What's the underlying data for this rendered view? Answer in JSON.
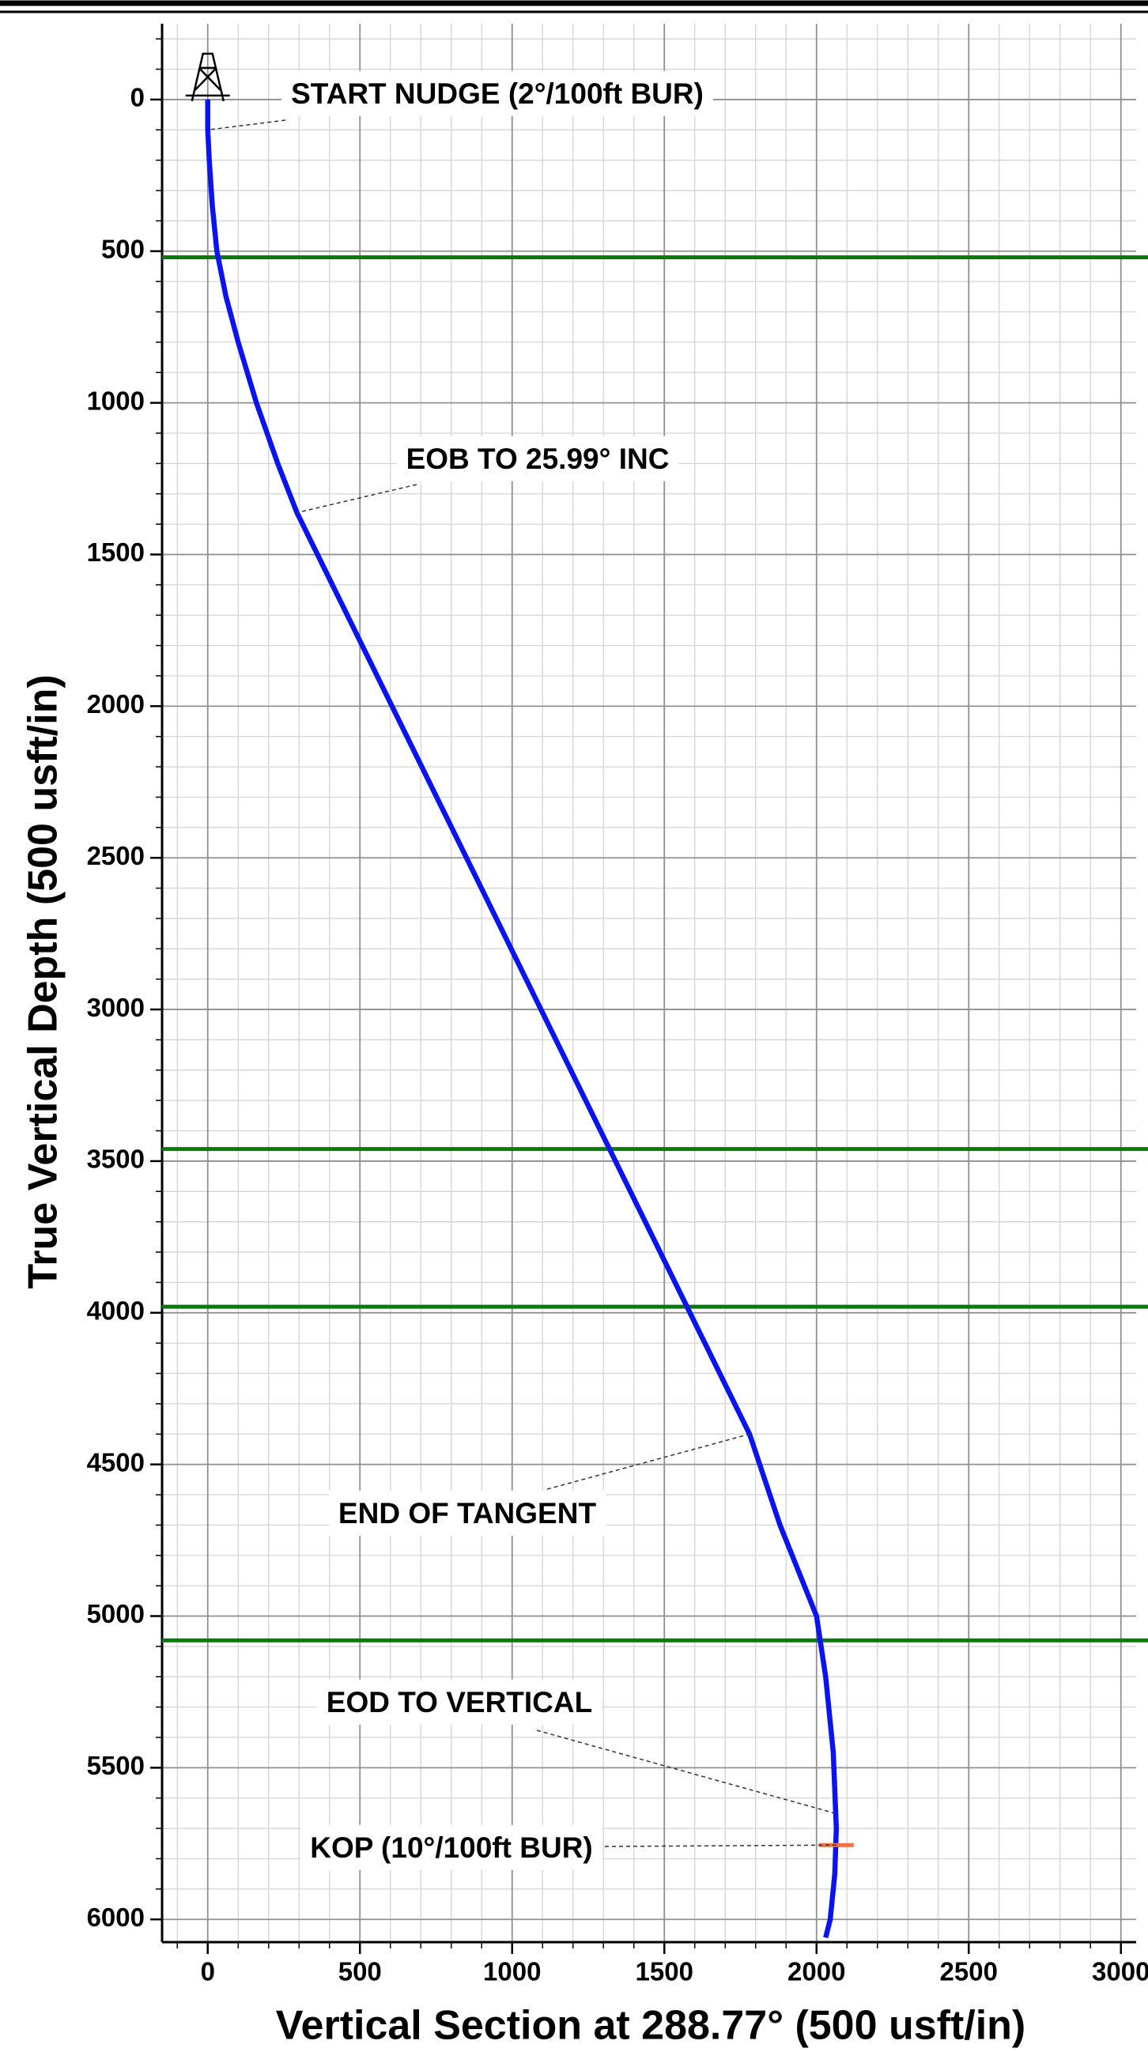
{
  "chart_data": {
    "type": "line",
    "x_label": "Vertical Section at 288.77° (500 usft/in)",
    "y_label": "True Vertical Depth (500 usft/in)",
    "xlim": [
      -150,
      3050
    ],
    "ylim": [
      -250,
      6075
    ],
    "y_inverted": true,
    "xticks": [
      0,
      500,
      1000,
      1500,
      2000,
      2500,
      3000
    ],
    "yticks": [
      0,
      500,
      1000,
      1500,
      2000,
      2500,
      3000,
      3500,
      4000,
      4500,
      5000,
      5500,
      6000
    ],
    "minor_grid_step": 100,
    "grid": true,
    "series": [
      {
        "color": "#0a14f0",
        "x": [
          0,
          0,
          5,
          15,
          30,
          60,
          100,
          160,
          230,
          293,
          1780,
          1880,
          1960,
          2000,
          2030,
          2055,
          2065,
          2060,
          2045,
          2030
        ],
        "values": [
          0,
          100,
          200,
          350,
          500,
          650,
          800,
          1000,
          1200,
          1362,
          4400,
          4700,
          4900,
          5000,
          5200,
          5450,
          5700,
          5850,
          6000,
          6060
        ]
      }
    ],
    "formation_lines": {
      "color": "#0a7a0a",
      "values": [
        520,
        3460,
        3980,
        5080
      ]
    },
    "annotations": [
      {
        "text": "START NUDGE (2°/100ft BUR)",
        "x": 0,
        "y": 100
      },
      {
        "text": "EOB TO 25.99° INC",
        "x": 293,
        "y": 1362
      },
      {
        "text": "END OF TANGENT",
        "x": 1780,
        "y": 4400
      },
      {
        "text": "EOD TO VERTICAL",
        "x": 2060,
        "y": 5650
      },
      {
        "text": "KOP (10°/100ft BUR)",
        "x": 2065,
        "y": 5755
      }
    ],
    "kop_marker_color": "#f07040"
  }
}
